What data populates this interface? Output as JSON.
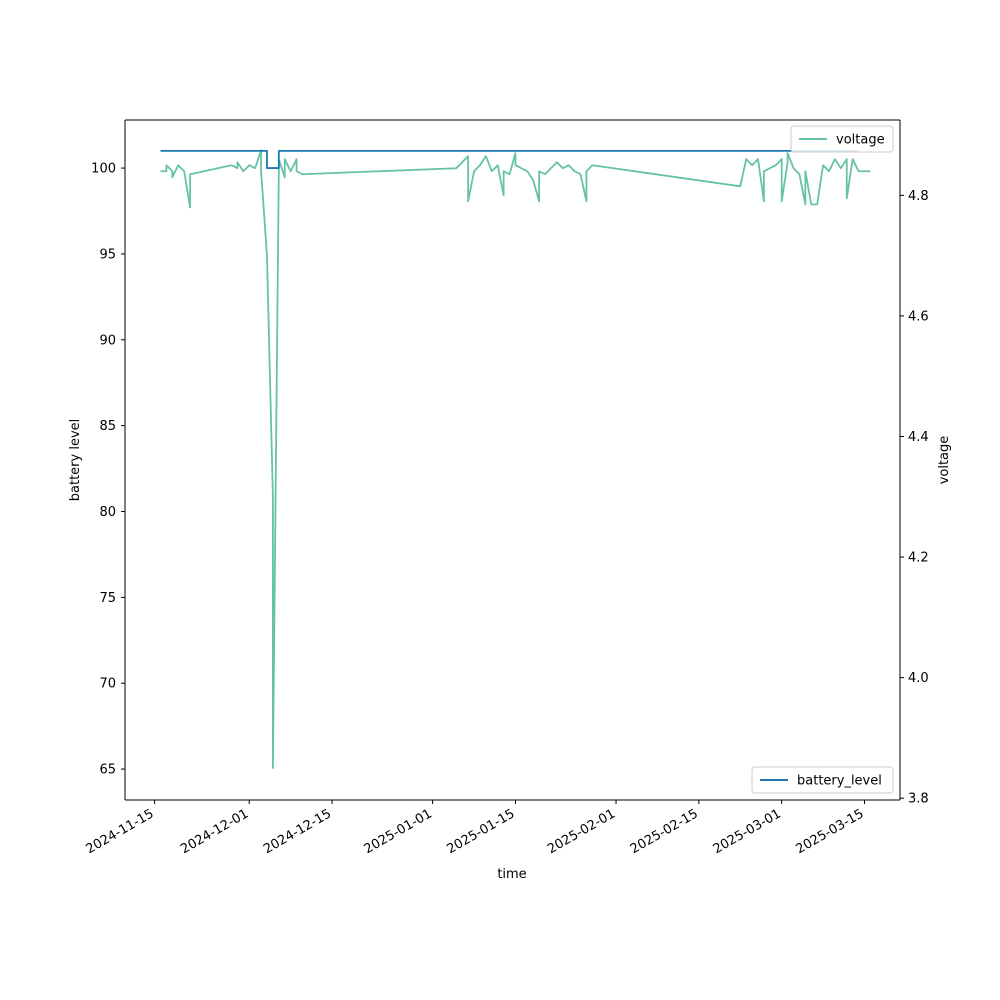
{
  "chart_data": {
    "type": "line",
    "xlabel": "time",
    "x_ticks": [
      "2024-11-15",
      "2024-12-01",
      "2024-12-15",
      "2025-01-01",
      "2025-01-15",
      "2025-02-01",
      "2025-02-15",
      "2025-03-01",
      "2025-03-15"
    ],
    "xlim": [
      "2024-11-10",
      "2025-03-21"
    ],
    "axes": {
      "left": {
        "label": "battery level",
        "ylim": [
          63.2,
          102.8
        ],
        "ticks": [
          65,
          70,
          75,
          80,
          85,
          90,
          95,
          100
        ]
      },
      "right": {
        "label": "voltage",
        "ylim": [
          3.797,
          4.925
        ],
        "ticks": [
          3.8,
          4.0,
          4.2,
          4.4,
          4.6,
          4.8
        ]
      }
    },
    "series": [
      {
        "name": "battery_level",
        "axis": "left",
        "color": "#1f77b4",
        "legend_position": "lower right",
        "points": [
          [
            "2024-11-16",
            101
          ],
          [
            "2024-12-04",
            101
          ],
          [
            "2024-12-04",
            100
          ],
          [
            "2024-12-06",
            100
          ],
          [
            "2024-12-06",
            101
          ],
          [
            "2025-03-14",
            101
          ]
        ]
      },
      {
        "name": "voltage",
        "axis": "right",
        "color": "#66c2a5",
        "legend_position": "upper right",
        "points": [
          [
            "2024-11-16",
            4.84
          ],
          [
            "2024-11-17",
            4.84
          ],
          [
            "2024-11-17",
            4.85
          ],
          [
            "2024-11-18",
            4.84
          ],
          [
            "2024-11-18",
            4.83
          ],
          [
            "2024-11-19",
            4.85
          ],
          [
            "2024-11-20",
            4.84
          ],
          [
            "2024-11-21",
            4.78
          ],
          [
            "2024-11-21",
            4.835
          ],
          [
            "2024-11-28",
            4.85
          ],
          [
            "2024-11-29",
            4.845
          ],
          [
            "2024-11-29",
            4.855
          ],
          [
            "2024-11-30",
            4.84
          ],
          [
            "2024-12-01",
            4.85
          ],
          [
            "2024-12-02",
            4.845
          ],
          [
            "2024-12-03",
            4.875
          ],
          [
            "2024-12-03",
            4.84
          ],
          [
            "2024-12-04",
            4.7
          ],
          [
            "2024-12-05",
            4.3
          ],
          [
            "2024-12-05",
            3.85
          ],
          [
            "2024-12-06",
            4.84
          ],
          [
            "2024-12-06",
            4.86
          ],
          [
            "2024-12-07",
            4.83
          ],
          [
            "2024-12-07",
            4.86
          ],
          [
            "2024-12-08",
            4.84
          ],
          [
            "2024-12-09",
            4.86
          ],
          [
            "2024-12-09",
            4.84
          ],
          [
            "2024-12-10",
            4.835
          ],
          [
            "2025-01-05",
            4.845
          ],
          [
            "2025-01-07",
            4.865
          ],
          [
            "2025-01-07",
            4.79
          ],
          [
            "2025-01-08",
            4.84
          ],
          [
            "2025-01-09",
            4.85
          ],
          [
            "2025-01-10",
            4.865
          ],
          [
            "2025-01-11",
            4.84
          ],
          [
            "2025-01-12",
            4.85
          ],
          [
            "2025-01-13",
            4.8
          ],
          [
            "2025-01-13",
            4.84
          ],
          [
            "2025-01-14",
            4.835
          ],
          [
            "2025-01-15",
            4.87
          ],
          [
            "2025-01-15",
            4.85
          ],
          [
            "2025-01-17",
            4.84
          ],
          [
            "2025-01-18",
            4.825
          ],
          [
            "2025-01-19",
            4.79
          ],
          [
            "2025-01-19",
            4.84
          ],
          [
            "2025-01-20",
            4.835
          ],
          [
            "2025-01-22",
            4.855
          ],
          [
            "2025-01-23",
            4.845
          ],
          [
            "2025-01-24",
            4.85
          ],
          [
            "2025-01-25",
            4.84
          ],
          [
            "2025-01-26",
            4.835
          ],
          [
            "2025-01-27",
            4.79
          ],
          [
            "2025-01-27",
            4.84
          ],
          [
            "2025-01-28",
            4.85
          ],
          [
            "2025-02-22",
            4.815
          ],
          [
            "2025-02-23",
            4.86
          ],
          [
            "2025-02-24",
            4.85
          ],
          [
            "2025-02-25",
            4.86
          ],
          [
            "2025-02-26",
            4.79
          ],
          [
            "2025-02-26",
            4.84
          ],
          [
            "2025-02-27",
            4.845
          ],
          [
            "2025-02-28",
            4.85
          ],
          [
            "2025-03-01",
            4.86
          ],
          [
            "2025-03-01",
            4.79
          ],
          [
            "2025-03-02",
            4.855
          ],
          [
            "2025-03-02",
            4.87
          ],
          [
            "2025-03-03",
            4.845
          ],
          [
            "2025-03-04",
            4.835
          ],
          [
            "2025-03-05",
            4.785
          ],
          [
            "2025-03-05",
            4.84
          ],
          [
            "2025-03-06",
            4.785
          ],
          [
            "2025-03-07",
            4.785
          ],
          [
            "2025-03-08",
            4.85
          ],
          [
            "2025-03-09",
            4.84
          ],
          [
            "2025-03-10",
            4.86
          ],
          [
            "2025-03-11",
            4.845
          ],
          [
            "2025-03-12",
            4.86
          ],
          [
            "2025-03-12",
            4.795
          ],
          [
            "2025-03-13",
            4.86
          ],
          [
            "2025-03-14",
            4.84
          ],
          [
            "2025-03-16",
            4.84
          ]
        ]
      }
    ],
    "grid": false
  }
}
